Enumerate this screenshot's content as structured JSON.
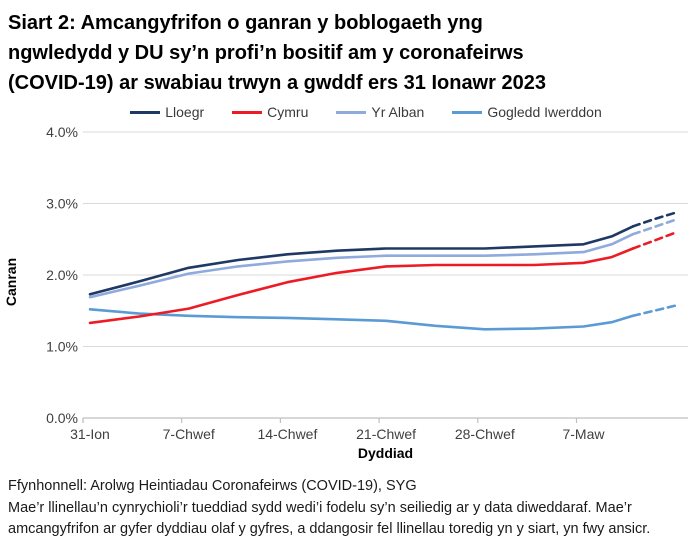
{
  "title_lines": [
    "Siart 2: Amcangyfrifon o ganran y boblogaeth yng",
    "ngwledydd y DU sy’n profi’n bositif am y coronafeirws",
    "(COVID-19) ar swabiau trwyn a gwddf ers 31 Ionawr 2023"
  ],
  "footer": {
    "source": "Ffynhonnell: Arolwg Heintiadau Coronafeirws (COVID-19), SYG",
    "note": "Mae’r llinellau’n cynrychioli’r tueddiad sydd wedi’i fodelu sy’n seiliedig ar y data diweddaraf. Mae’r amcangyfrifon ar gyfer dyddiau olaf y gyfres, a ddangosir fel llinellau toredig yn y siart, yn fwy ansicr."
  },
  "chart_data": {
    "type": "line",
    "title": "Siart 2: Amcangyfrifon o ganran y boblogaeth yng ngwledydd y DU sy’n profi’n bositif am y coronafeirws (COVID-19) ar swabiau trwyn a gwddf ers 31 Ionawr 2023",
    "xlabel": "Dyddiad",
    "ylabel": "Canran",
    "ylim": [
      0,
      4.0
    ],
    "x_unit": "dyddiau ers 31 Ionawr 2023",
    "grid": "horizontal",
    "legend_position": "top",
    "dashed_note": "llinellau toredig = amcangyfrifon mwy ansicr ar gyfer dyddiau olaf y gyfres",
    "yticks": [
      {
        "value": 0.0,
        "label": "0.0%"
      },
      {
        "value": 1.0,
        "label": "1.0%"
      },
      {
        "value": 2.0,
        "label": "2.0%"
      },
      {
        "value": 3.0,
        "label": "3.0%"
      },
      {
        "value": 4.0,
        "label": "4.0%"
      }
    ],
    "xticks": [
      {
        "day": 0,
        "label": "31-Ion"
      },
      {
        "day": 7,
        "label": "7-Chwef"
      },
      {
        "day": 14,
        "label": "14-Chwef"
      },
      {
        "day": 21,
        "label": "21-Chwef"
      },
      {
        "day": 28,
        "label": "28-Chwef"
      },
      {
        "day": 35,
        "label": "7-Maw"
      }
    ],
    "series": [
      {
        "name": "Lloegr",
        "color": "#1f3864",
        "x": [
          0,
          3.5,
          7,
          10.5,
          14,
          17.5,
          21,
          24.5,
          28,
          31.5,
          35,
          37,
          38.5,
          40,
          41.5
        ],
        "y": [
          1.73,
          1.91,
          2.1,
          2.21,
          2.29,
          2.34,
          2.37,
          2.37,
          2.37,
          2.4,
          2.43,
          2.54,
          2.68,
          2.78,
          2.87
        ],
        "dash_from_index": 12
      },
      {
        "name": "Cymru",
        "color": "#ed1c24",
        "x": [
          0,
          3.5,
          7,
          10.5,
          14,
          17.5,
          21,
          24.5,
          28,
          31.5,
          35,
          37,
          38.5,
          40,
          41.5
        ],
        "y": [
          1.33,
          1.42,
          1.53,
          1.72,
          1.9,
          2.03,
          2.12,
          2.14,
          2.14,
          2.14,
          2.17,
          2.25,
          2.37,
          2.48,
          2.59
        ],
        "dash_from_index": 12
      },
      {
        "name": "Yr Alban",
        "color": "#8faadc",
        "x": [
          0,
          3.5,
          7,
          10.5,
          14,
          17.5,
          21,
          24.5,
          28,
          31.5,
          35,
          37,
          38.5,
          40,
          41.5
        ],
        "y": [
          1.69,
          1.85,
          2.02,
          2.12,
          2.19,
          2.24,
          2.27,
          2.27,
          2.27,
          2.29,
          2.32,
          2.43,
          2.57,
          2.67,
          2.77
        ],
        "dash_from_index": 12
      },
      {
        "name": "Gogledd Iwerddon",
        "color": "#5b9bd5",
        "x": [
          0,
          3.5,
          7,
          10.5,
          14,
          17.5,
          21,
          24.5,
          28,
          31.5,
          35,
          37,
          38.5,
          40,
          41.5
        ],
        "y": [
          1.52,
          1.46,
          1.43,
          1.41,
          1.4,
          1.38,
          1.36,
          1.29,
          1.24,
          1.25,
          1.28,
          1.34,
          1.43,
          1.5,
          1.57
        ],
        "dash_from_index": 12
      }
    ],
    "colors": {
      "gridline": "#d9d9d9",
      "axis": "#bfbfbf",
      "tick_text": "#404040",
      "axis_title": "#000000"
    }
  }
}
